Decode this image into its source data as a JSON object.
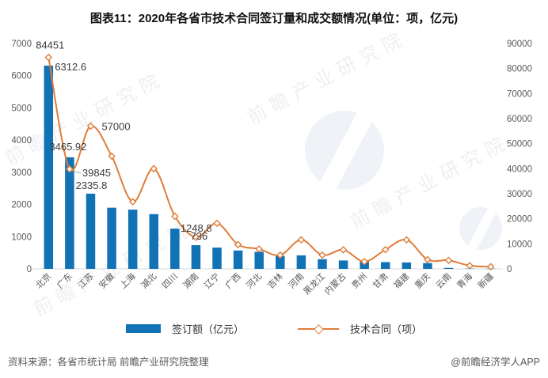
{
  "title": "图表11：2020年各省市技术合同签订量和成交额情况(单位：项，亿元)",
  "chart_data": {
    "type": "combo-bar-line",
    "categories": [
      "北京",
      "广东",
      "江苏",
      "安徽",
      "上海",
      "湖北",
      "四川",
      "湖南",
      "辽宁",
      "广西",
      "河北",
      "吉林",
      "河南",
      "黑龙江",
      "内蒙古",
      "贵州",
      "甘肃",
      "福建",
      "重庆",
      "云南",
      "青海",
      "新疆"
    ],
    "series": [
      {
        "name": "签订额（亿元）",
        "type": "bar",
        "axis": "left",
        "values": [
          6312.6,
          3465.92,
          2335.8,
          1900,
          1840,
          1700,
          1248.8,
          736,
          660,
          570,
          530,
          400,
          420,
          300,
          260,
          230,
          210,
          200,
          180,
          30,
          8,
          6
        ]
      },
      {
        "name": "技术合同（项）",
        "type": "line",
        "axis": "right",
        "values": [
          84451,
          39845,
          57000,
          45000,
          26800,
          40000,
          21000,
          12600,
          18200,
          9700,
          7900,
          5500,
          11600,
          5500,
          7600,
          2900,
          7700,
          11600,
          3700,
          3400,
          1300,
          850
        ]
      }
    ],
    "left_axis": {
      "min": 0,
      "max": 7000,
      "ticks": [
        "0",
        "1000",
        "2000",
        "3000",
        "4000",
        "5000",
        "6000",
        "7000"
      ]
    },
    "right_axis": {
      "min": 0,
      "max": 90000,
      "ticks": [
        "0",
        "10000",
        "20000",
        "30000",
        "40000",
        "50000",
        "60000",
        "70000",
        "80000",
        "90000"
      ]
    },
    "annotations": [
      {
        "series": "line",
        "index": 0,
        "text": "84451"
      },
      {
        "series": "bar",
        "index": 0,
        "text": "6312.6"
      },
      {
        "series": "bar",
        "index": 1,
        "text": "3465.92"
      },
      {
        "series": "line",
        "index": 1,
        "text": "39845"
      },
      {
        "series": "line",
        "index": 2,
        "text": "57000"
      },
      {
        "series": "bar",
        "index": 2,
        "text": "2335.8"
      },
      {
        "series": "bar",
        "index": 6,
        "text": "1248.8"
      },
      {
        "series": "bar",
        "index": 7,
        "text": "736"
      }
    ],
    "legend_position": "bottom",
    "grid": false
  },
  "colors": {
    "bar": "#1272B6",
    "line": "#E07D3A",
    "axis_text": "#595959",
    "label_text": "#3b3b3b",
    "baseline": "#D9D9D9",
    "leader": "#A6A6A6"
  },
  "legend": {
    "bar_label": "签订额（亿元）",
    "line_label": "技术合同（项）"
  },
  "footer": {
    "source": "资料来源：各省市统计局 前瞻产业研究院整理",
    "credit": "@前瞻经济学人APP"
  },
  "watermark": {
    "text": "前瞻产业研究院"
  }
}
